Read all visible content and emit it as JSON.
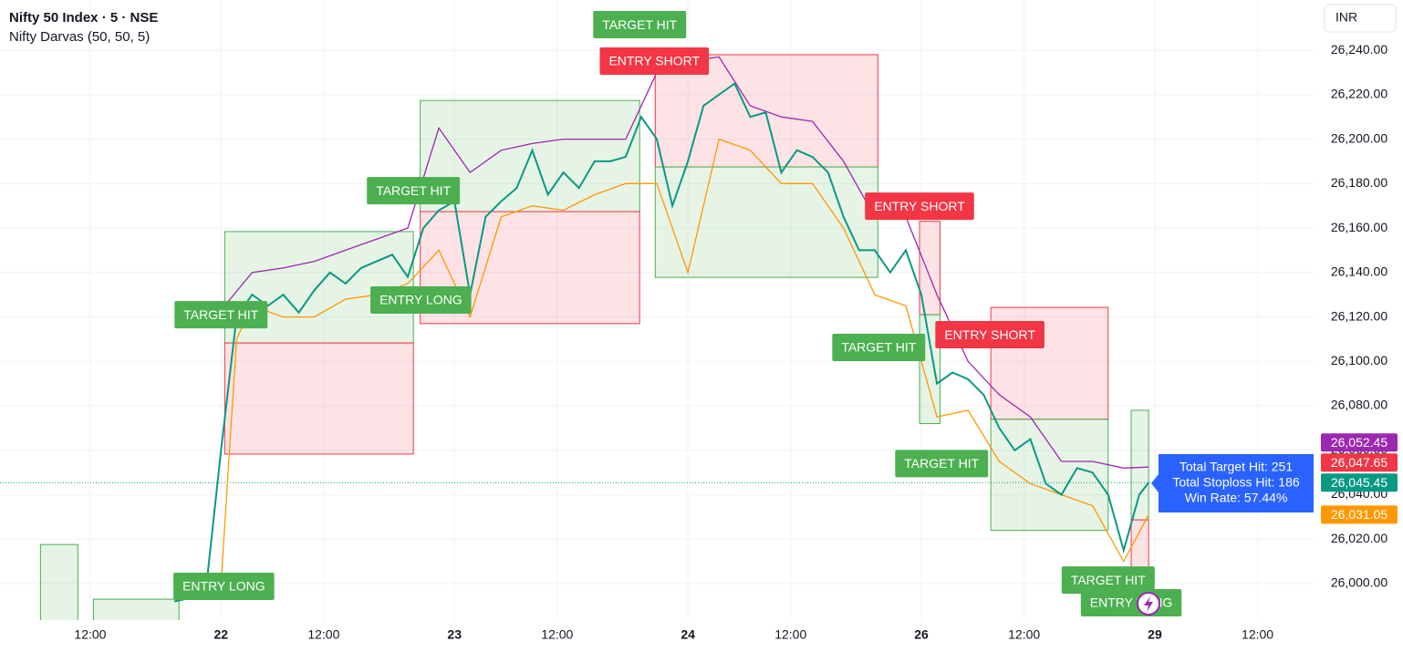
{
  "header": {
    "title": "Nifty 50 Index · 5 · NSE",
    "indicator": "Nifty Darvas (50, 50, 5)",
    "currency": "INR"
  },
  "chart_data": {
    "type": "line",
    "xlim": [
      -71,
      351
    ],
    "ylim": [
      25983.6,
      26262.6
    ],
    "grid": true,
    "xticks": [
      {
        "value": -42,
        "label": "12:00"
      },
      {
        "value": 0,
        "label": "22"
      },
      {
        "value": 33,
        "label": "12:00"
      },
      {
        "value": 75,
        "label": "23"
      },
      {
        "value": 108,
        "label": "12:00"
      },
      {
        "value": 150,
        "label": "24"
      },
      {
        "value": 183,
        "label": "12:00"
      },
      {
        "value": 225,
        "label": "26"
      },
      {
        "value": 258,
        "label": "12:00"
      },
      {
        "value": 300,
        "label": "29"
      },
      {
        "value": 333,
        "label": "12:00"
      }
    ],
    "yticks": [
      {
        "value": 26000,
        "label": "26,000.00"
      },
      {
        "value": 26020,
        "label": "26,020.00"
      },
      {
        "value": 26040,
        "label": "26,040.00"
      },
      {
        "value": 26060,
        "label": "26,060.00"
      },
      {
        "value": 26080,
        "label": "26,080.00"
      },
      {
        "value": 26100,
        "label": "26,100.00"
      },
      {
        "value": 26120,
        "label": "26,120.00"
      },
      {
        "value": 26140,
        "label": "26,140.00"
      },
      {
        "value": 26160,
        "label": "26,160.00"
      },
      {
        "value": 26180,
        "label": "26,180.00"
      },
      {
        "value": 26200,
        "label": "26,200.00"
      },
      {
        "value": 26220,
        "label": "26,220.00"
      },
      {
        "value": 26240,
        "label": "26,240.00"
      }
    ],
    "series": [
      {
        "color": "#089981",
        "x": [
          -15,
          -5,
          0,
          5,
          10,
          15,
          20,
          25,
          30,
          35,
          40,
          45,
          50,
          55,
          60,
          65,
          70,
          75,
          80,
          85,
          90,
          95,
          100,
          105,
          110,
          115,
          120,
          125,
          130,
          135,
          140,
          145,
          150,
          155,
          160,
          165,
          170,
          175,
          180,
          185,
          190,
          195,
          200,
          205,
          210,
          215,
          220,
          225,
          230,
          235,
          240,
          245,
          250,
          255,
          260,
          265,
          270,
          275,
          280,
          285,
          290,
          295,
          298
        ],
        "values": [
          25992,
          25995,
          26060,
          26120,
          26130,
          26125,
          26130,
          26122,
          26132,
          26140,
          26135,
          26142,
          26145,
          26148,
          26138,
          26160,
          26168,
          26172,
          26130,
          26165,
          26172,
          26178,
          26195,
          26175,
          26185,
          26178,
          26190,
          26190,
          26192,
          26210,
          26200,
          26170,
          26190,
          26215,
          26220,
          26225,
          26210,
          26212,
          26185,
          26195,
          26192,
          26185,
          26165,
          26150,
          26150,
          26140,
          26150,
          26130,
          26090,
          26095,
          26092,
          26085,
          26070,
          26060,
          26065,
          26045,
          26040,
          26052,
          26050,
          26040,
          26015,
          26040,
          26045.45
        ]
      },
      {
        "color": "#9c27b0",
        "x": [
          0,
          10,
          20,
          30,
          40,
          50,
          60,
          70,
          80,
          90,
          100,
          110,
          120,
          130,
          140,
          150,
          160,
          170,
          180,
          190,
          200,
          210,
          220,
          230,
          240,
          250,
          260,
          270,
          280,
          290,
          298
        ],
        "values": [
          26123,
          26140,
          26142,
          26145,
          26150,
          26155,
          26160,
          26205,
          26185,
          26195,
          26198,
          26200,
          26200,
          26200,
          26230,
          26235,
          26237,
          26215,
          26210,
          26208,
          26190,
          26165,
          26165,
          26130,
          26100,
          26085,
          26075,
          26055,
          26055,
          26052,
          26052.45
        ]
      },
      {
        "color": "#ff9800",
        "x": [
          0,
          5,
          10,
          20,
          30,
          40,
          50,
          60,
          70,
          80,
          90,
          100,
          110,
          120,
          130,
          140,
          150,
          160,
          170,
          180,
          190,
          200,
          210,
          220,
          230,
          240,
          250,
          260,
          270,
          280,
          290,
          298
        ],
        "values": [
          26000,
          26110,
          26125,
          26120,
          26120,
          26128,
          26130,
          26135,
          26150,
          26120,
          26165,
          26170,
          26168,
          26175,
          26180,
          26180,
          26140,
          26200,
          26195,
          26180,
          26180,
          26160,
          26130,
          26125,
          26075,
          26078,
          26055,
          26045,
          26040,
          26035,
          26010,
          26031.05
        ]
      }
    ],
    "boxes": [
      {
        "x": [
          -58,
          -46
        ],
        "top": 26017.6,
        "bottom": 25975,
        "color": "#4caf50"
      },
      {
        "x": [
          -41,
          -13.5
        ],
        "top": 25993,
        "bottom": 25975,
        "color": "#4caf50"
      },
      {
        "x": [
          1.2,
          61.8
        ],
        "top": 26158.4,
        "bottom": 26108.3,
        "color": "#4caf50"
      },
      {
        "x": [
          1.2,
          61.8
        ],
        "top": 26108.3,
        "bottom": 26058.3,
        "color": "#f23645"
      },
      {
        "x": [
          64,
          134.5
        ],
        "top": 26217.4,
        "bottom": 26167.4,
        "color": "#4caf50"
      },
      {
        "x": [
          64,
          134.5
        ],
        "top": 26167.4,
        "bottom": 26117,
        "color": "#f23645"
      },
      {
        "x": [
          139.5,
          211
        ],
        "top": 26238,
        "bottom": 26187.5,
        "color": "#f23645"
      },
      {
        "x": [
          139.5,
          211
        ],
        "top": 26187.5,
        "bottom": 26137.8,
        "color": "#4caf50"
      },
      {
        "x": [
          224.4,
          231
        ],
        "top": 26163,
        "bottom": 26121,
        "color": "#f23645"
      },
      {
        "x": [
          224.4,
          231
        ],
        "top": 26121,
        "bottom": 26072,
        "color": "#4caf50"
      },
      {
        "x": [
          247.3,
          285
        ],
        "top": 26124.3,
        "bottom": 26074,
        "color": "#f23645"
      },
      {
        "x": [
          247.3,
          285
        ],
        "top": 26074,
        "bottom": 26024,
        "color": "#4caf50"
      },
      {
        "x": [
          292.4,
          298
        ],
        "top": 26078,
        "bottom": 26028.7,
        "color": "#4caf50"
      },
      {
        "x": [
          292.4,
          298
        ],
        "top": 26028.7,
        "bottom": 26007.4,
        "color": "#f23645"
      }
    ],
    "annotations": [
      {
        "text": "TARGET HIT",
        "x": 134.5,
        "y": 26251.5,
        "color": "#4caf50"
      },
      {
        "text": "ENTRY SHORT",
        "x": 139.2,
        "y": 26235.1,
        "color": "#f23645"
      },
      {
        "text": "TARGET HIT",
        "x": 61.8,
        "y": 26176.8,
        "color": "#4caf50"
      },
      {
        "text": "TARGET HIT",
        "x": 0,
        "y": 26121,
        "color": "#4caf50"
      },
      {
        "text": "ENTRY LONG",
        "x": 64.2,
        "y": 26127.6,
        "color": "#4caf50"
      },
      {
        "text": "ENTRY LONG",
        "x": 0.9,
        "y": 25998.8,
        "color": "#4caf50"
      },
      {
        "text": "ENTRY SHORT",
        "x": 224.4,
        "y": 26169.8,
        "color": "#f23645"
      },
      {
        "text": "TARGET HIT",
        "x": 211.3,
        "y": 26106.3,
        "color": "#4caf50"
      },
      {
        "text": "ENTRY SHORT",
        "x": 247,
        "y": 26112,
        "color": "#f23645"
      },
      {
        "text": "TARGET HIT",
        "x": 231.5,
        "y": 26054,
        "color": "#4caf50"
      },
      {
        "text": "TARGET HIT",
        "x": 285,
        "y": 26001.6,
        "color": "#4caf50"
      },
      {
        "text": "ENTRY LONG",
        "x": 292.4,
        "y": 25991.4,
        "color": "#4caf50"
      }
    ],
    "stats": [
      "Total Target Hit: 251",
      "Total Stoploss Hit: 186",
      "Win Rate: 57.44%"
    ],
    "price_tags": [
      {
        "value": 26052.45,
        "label": "26,052.45",
        "color": "#9c27b0"
      },
      {
        "value": 26047.65,
        "label": "26,047.65",
        "color": "#f23645"
      },
      {
        "value": 26045.45,
        "label": "26,045.45",
        "color": "#089981"
      },
      {
        "value": 26031.05,
        "label": "26,031.05",
        "color": "#ff9800"
      }
    ]
  }
}
